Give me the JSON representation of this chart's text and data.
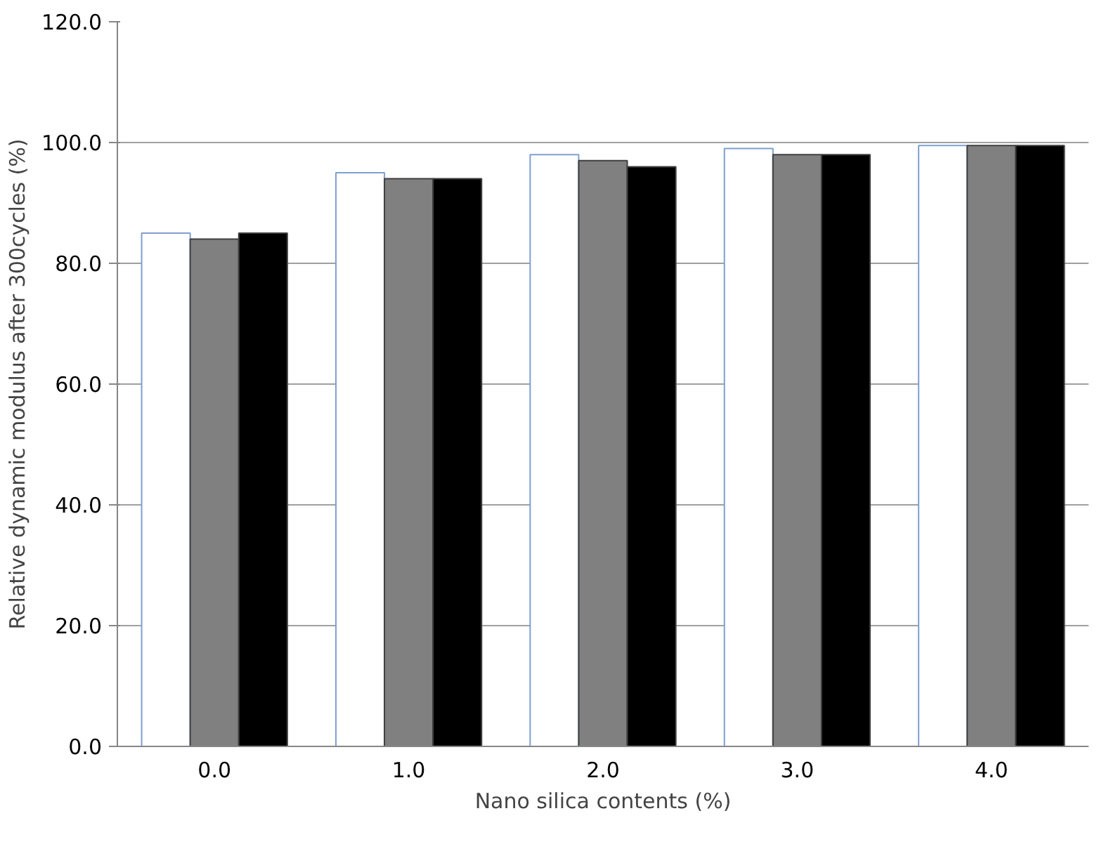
{
  "chart_data": {
    "type": "bar",
    "xlabel": "Nano silica contents (%)",
    "ylabel": "Relative dynamic modulus after 300cycles (%)",
    "categories": [
      "0.0",
      "1.0",
      "2.0",
      "3.0",
      "4.0"
    ],
    "series": [
      {
        "color": "#ffffff",
        "values": [
          85,
          95,
          98,
          99,
          99.5
        ]
      },
      {
        "color": "#808080",
        "values": [
          84,
          94,
          97,
          98,
          99.5
        ]
      },
      {
        "color": "#000000",
        "values": [
          85,
          94,
          96,
          98,
          99.5
        ]
      }
    ],
    "ylim": [
      0,
      120
    ],
    "yticks": [
      {
        "value": 0,
        "label": "0.0"
      },
      {
        "value": 20,
        "label": "20.0"
      },
      {
        "value": 40,
        "label": "40.0"
      },
      {
        "value": 60,
        "label": "60.0"
      },
      {
        "value": 80,
        "label": "80.0"
      },
      {
        "value": 100,
        "label": "100.0"
      },
      {
        "value": 120,
        "label": "120.0"
      }
    ],
    "grid": "y"
  }
}
